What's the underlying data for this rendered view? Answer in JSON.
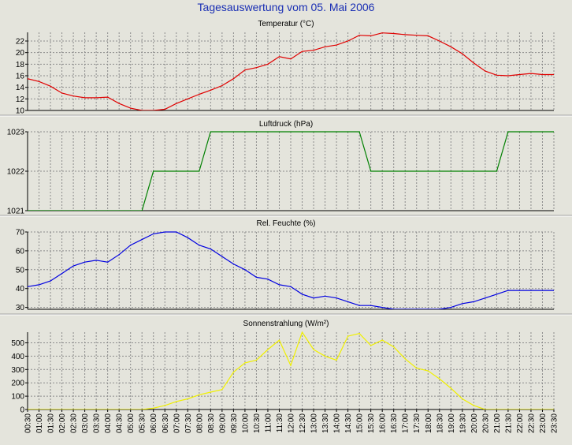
{
  "page": {
    "title": "Tagesauswertung vom 05. Mai 2006"
  },
  "colors": {
    "background": "#e4e4dc",
    "title": "#1a2fb4",
    "grid": "#8c8c8c",
    "temperature": "#e00000",
    "pressure": "#008000",
    "humidity": "#0000e0",
    "radiation": "#f0f000"
  },
  "chart_data": [
    {
      "type": "line",
      "title": "Temperatur (°C)",
      "ylim": [
        10,
        23.5
      ],
      "yticks": [
        10,
        12,
        14,
        16,
        18,
        20,
        22
      ],
      "grid": true,
      "series": [
        {
          "values": [
            15.5,
            15.0,
            14.2,
            13.0,
            12.5,
            12.2,
            12.2,
            12.3,
            11.2,
            10.4,
            10.0,
            10.0,
            10.2,
            11.2,
            12.0,
            12.8,
            13.5,
            14.3,
            15.5,
            17.0,
            17.4,
            18.0,
            19.3,
            18.9,
            20.2,
            20.4,
            21.0,
            21.3,
            22.0,
            23.0,
            22.9,
            23.4,
            23.3,
            23.1,
            23.0,
            22.9,
            22.0,
            21.0,
            19.8,
            18.2,
            16.8,
            16.1,
            16.0,
            16.2,
            16.4,
            16.2,
            16.2
          ]
        }
      ]
    },
    {
      "type": "line",
      "title": "Luftdruck (hPa)",
      "ylim": [
        1021,
        1023
      ],
      "yticks": [
        1021,
        1022,
        1023
      ],
      "grid": true,
      "series": [
        {
          "values": [
            1021,
            1021,
            1021,
            1021,
            1021,
            1021,
            1021,
            1021,
            1021,
            1021,
            1021,
            1022,
            1022,
            1022,
            1022,
            1022,
            1023,
            1023,
            1023,
            1023,
            1023,
            1023,
            1023,
            1023,
            1023,
            1023,
            1023,
            1023,
            1023,
            1023,
            1022,
            1022,
            1022,
            1022,
            1022,
            1022,
            1022,
            1022,
            1022,
            1022,
            1022,
            1022,
            1023,
            1023,
            1023,
            1023,
            1023
          ]
        }
      ]
    },
    {
      "type": "line",
      "title": "Rel. Feuchte (%)",
      "ylim": [
        29,
        70
      ],
      "yticks": [
        30,
        40,
        50,
        60,
        70
      ],
      "grid": true,
      "series": [
        {
          "values": [
            41,
            42,
            44,
            48,
            52,
            54,
            55,
            54,
            58,
            63,
            66,
            69,
            70,
            70,
            67,
            63,
            61,
            57,
            53,
            50,
            46,
            45,
            42,
            41,
            37,
            35,
            36,
            35,
            33,
            31,
            31,
            30,
            29,
            29,
            29,
            29,
            29,
            30,
            32,
            33,
            35,
            37,
            39,
            39,
            39,
            39,
            39
          ]
        }
      ]
    },
    {
      "type": "line",
      "title": "Sonnenstrahlung (W/m²)",
      "ylim": [
        0,
        580
      ],
      "yticks": [
        0,
        100,
        200,
        300,
        400,
        500
      ],
      "grid": true,
      "xlabels": [
        "00:30",
        "01:00",
        "01:30",
        "02:00",
        "02:30",
        "03:00",
        "03:30",
        "04:00",
        "04:30",
        "05:00",
        "05:30",
        "06:00",
        "06:30",
        "07:00",
        "07:30",
        "08:00",
        "08:30",
        "09:00",
        "09:30",
        "10:00",
        "10:30",
        "11:00",
        "11:30",
        "12:00",
        "12:30",
        "13:00",
        "13:30",
        "14:00",
        "14:30",
        "15:00",
        "15:30",
        "16:00",
        "16:30",
        "17:00",
        "17:30",
        "18:00",
        "18:30",
        "19:00",
        "19:30",
        "20:00",
        "20:30",
        "21:00",
        "21:30",
        "22:00",
        "22:30",
        "23:00",
        "23:30"
      ],
      "series": [
        {
          "values": [
            0,
            0,
            0,
            0,
            0,
            0,
            0,
            0,
            0,
            0,
            0,
            10,
            30,
            60,
            80,
            110,
            130,
            150,
            280,
            350,
            370,
            450,
            520,
            330,
            580,
            450,
            400,
            370,
            550,
            570,
            480,
            520,
            470,
            380,
            310,
            290,
            230,
            160,
            80,
            30,
            0,
            0,
            0,
            0,
            0,
            0,
            0
          ]
        }
      ]
    }
  ]
}
